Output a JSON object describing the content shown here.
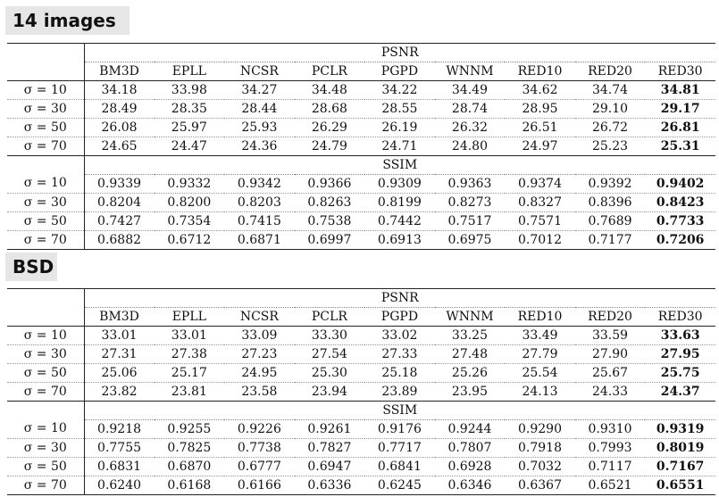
{
  "sections": [
    {
      "title": "14 images",
      "columns": [
        "BM3D",
        "EPLL",
        "NCSR",
        "PCLR",
        "PGPD",
        "WNNM",
        "RED10",
        "RED20",
        "RED30"
      ],
      "groups": [
        {
          "metric": "PSNR",
          "rows": [
            {
              "label": "σ = 10",
              "values": [
                "34.18",
                "33.98",
                "34.27",
                "34.48",
                "34.22",
                "34.49",
                "34.62",
                "34.74",
                "34.81"
              ]
            },
            {
              "label": "σ = 30",
              "values": [
                "28.49",
                "28.35",
                "28.44",
                "28.68",
                "28.55",
                "28.74",
                "28.95",
                "29.10",
                "29.17"
              ]
            },
            {
              "label": "σ = 50",
              "values": [
                "26.08",
                "25.97",
                "25.93",
                "26.29",
                "26.19",
                "26.32",
                "26.51",
                "26.72",
                "26.81"
              ]
            },
            {
              "label": "σ = 70",
              "values": [
                "24.65",
                "24.47",
                "24.36",
                "24.79",
                "24.71",
                "24.80",
                "24.97",
                "25.23",
                "25.31"
              ]
            }
          ]
        },
        {
          "metric": "SSIM",
          "rows": [
            {
              "label": "σ = 10",
              "values": [
                "0.9339",
                "0.9332",
                "0.9342",
                "0.9366",
                "0.9309",
                "0.9363",
                "0.9374",
                "0.9392",
                "0.9402"
              ]
            },
            {
              "label": "σ = 30",
              "values": [
                "0.8204",
                "0.8200",
                "0.8203",
                "0.8263",
                "0.8199",
                "0.8273",
                "0.8327",
                "0.8396",
                "0.8423"
              ]
            },
            {
              "label": "σ = 50",
              "values": [
                "0.7427",
                "0.7354",
                "0.7415",
                "0.7538",
                "0.7442",
                "0.7517",
                "0.7571",
                "0.7689",
                "0.7733"
              ]
            },
            {
              "label": "σ = 70",
              "values": [
                "0.6882",
                "0.6712",
                "0.6871",
                "0.6997",
                "0.6913",
                "0.6975",
                "0.7012",
                "0.7177",
                "0.7206"
              ]
            }
          ]
        }
      ]
    },
    {
      "title": "BSD",
      "columns": [
        "BM3D",
        "EPLL",
        "NCSR",
        "PCLR",
        "PGPD",
        "WNNM",
        "RED10",
        "RED20",
        "RED30"
      ],
      "groups": [
        {
          "metric": "PSNR",
          "rows": [
            {
              "label": "σ = 10",
              "values": [
                "33.01",
                "33.01",
                "33.09",
                "33.30",
                "33.02",
                "33.25",
                "33.49",
                "33.59",
                "33.63"
              ]
            },
            {
              "label": "σ = 30",
              "values": [
                "27.31",
                "27.38",
                "27.23",
                "27.54",
                "27.33",
                "27.48",
                "27.79",
                "27.90",
                "27.95"
              ]
            },
            {
              "label": "σ = 50",
              "values": [
                "25.06",
                "25.17",
                "24.95",
                "25.30",
                "25.18",
                "25.26",
                "25.54",
                "25.67",
                "25.75"
              ]
            },
            {
              "label": "σ = 70",
              "values": [
                "23.82",
                "23.81",
                "23.58",
                "23.94",
                "23.89",
                "23.95",
                "24.13",
                "24.33",
                "24.37"
              ]
            }
          ]
        },
        {
          "metric": "SSIM",
          "rows": [
            {
              "label": "σ = 10",
              "values": [
                "0.9218",
                "0.9255",
                "0.9226",
                "0.9261",
                "0.9176",
                "0.9244",
                "0.9290",
                "0.9310",
                "0.9319"
              ]
            },
            {
              "label": "σ = 30",
              "values": [
                "0.7755",
                "0.7825",
                "0.7738",
                "0.7827",
                "0.7717",
                "0.7807",
                "0.7918",
                "0.7993",
                "0.8019"
              ]
            },
            {
              "label": "σ = 50",
              "values": [
                "0.6831",
                "0.6870",
                "0.6777",
                "0.6947",
                "0.6841",
                "0.6928",
                "0.7032",
                "0.7117",
                "0.7167"
              ]
            },
            {
              "label": "σ = 70",
              "values": [
                "0.6240",
                "0.6168",
                "0.6166",
                "0.6336",
                "0.6245",
                "0.6346",
                "0.6367",
                "0.6521",
                "0.6551"
              ]
            }
          ]
        }
      ]
    }
  ]
}
